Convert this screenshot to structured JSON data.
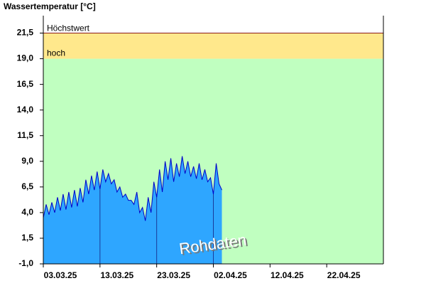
{
  "chart_data": {
    "type": "area",
    "title": "Wassertemperatur [°C]",
    "watermark": "Rohdaten",
    "x": [
      0,
      0.5,
      1,
      1.5,
      2,
      2.5,
      3,
      3.5,
      4,
      4.5,
      5,
      5.5,
      6,
      6.5,
      7,
      7.5,
      8,
      8.5,
      9,
      9.5,
      10,
      10.5,
      11,
      11.5,
      12,
      12.5,
      13,
      13.5,
      14,
      14.5,
      15,
      15.5,
      16,
      16.5,
      17,
      17.5,
      18,
      18.5,
      19,
      19.5,
      20,
      20.5,
      21,
      21.5,
      22,
      22.5,
      23,
      23.5,
      24,
      24.5,
      25,
      25.5,
      26,
      26.5,
      27,
      27.5,
      28,
      28.5,
      29,
      29.5,
      30,
      30.5,
      31,
      31.5
    ],
    "values": [
      3.5,
      4.8,
      3.8,
      5.0,
      4.0,
      5.5,
      4.2,
      5.8,
      4.3,
      6.0,
      4.5,
      6.2,
      4.6,
      6.4,
      5.0,
      7.2,
      5.8,
      7.6,
      6.2,
      8.0,
      6.3,
      8.2,
      7.0,
      7.8,
      6.8,
      7.2,
      6.0,
      6.5,
      5.5,
      5.8,
      5.2,
      5.2,
      4.8,
      6.0,
      4.0,
      4.5,
      3.2,
      5.5,
      4.0,
      7.0,
      5.5,
      8.2,
      6.0,
      9.0,
      7.2,
      9.3,
      7.0,
      8.8,
      7.5,
      9.5,
      7.8,
      9.0,
      7.5,
      8.5,
      7.3,
      8.8,
      7.2,
      8.2,
      7.0,
      7.4,
      5.8,
      8.8,
      6.8,
      6.2
    ],
    "color": "#2ea6ff",
    "line_color": "#0000c8",
    "background_color": "#c0ffc0",
    "thresholds": [
      {
        "label": "hoch",
        "value": 19.0,
        "color": "#ffe88c"
      },
      {
        "label": "Höchstwert",
        "value": 21.5,
        "color": "#8b1a1a"
      }
    ],
    "xlim": [
      0,
      60
    ],
    "xticks": [
      {
        "value": 0,
        "label": "03.03.25"
      },
      {
        "value": 10,
        "label": "13.03.25"
      },
      {
        "value": 20,
        "label": "23.03.25"
      },
      {
        "value": 30,
        "label": "02.04.25"
      },
      {
        "value": 40,
        "label": "12.04.25"
      },
      {
        "value": 50,
        "label": "22.04.25"
      }
    ],
    "ylim": [
      -1.0,
      23.2
    ],
    "yticks": [
      {
        "value": -1.0,
        "label": "-1,0"
      },
      {
        "value": 1.5,
        "label": "1,5"
      },
      {
        "value": 4.0,
        "label": "4,0"
      },
      {
        "value": 6.5,
        "label": "6,5"
      },
      {
        "value": 9.0,
        "label": "9,0"
      },
      {
        "value": 11.5,
        "label": "11,5"
      },
      {
        "value": 14.0,
        "label": "14,0"
      },
      {
        "value": 16.5,
        "label": "16,5"
      },
      {
        "value": 19.0,
        "label": "19,0"
      },
      {
        "value": 21.5,
        "label": "21,5"
      }
    ]
  }
}
